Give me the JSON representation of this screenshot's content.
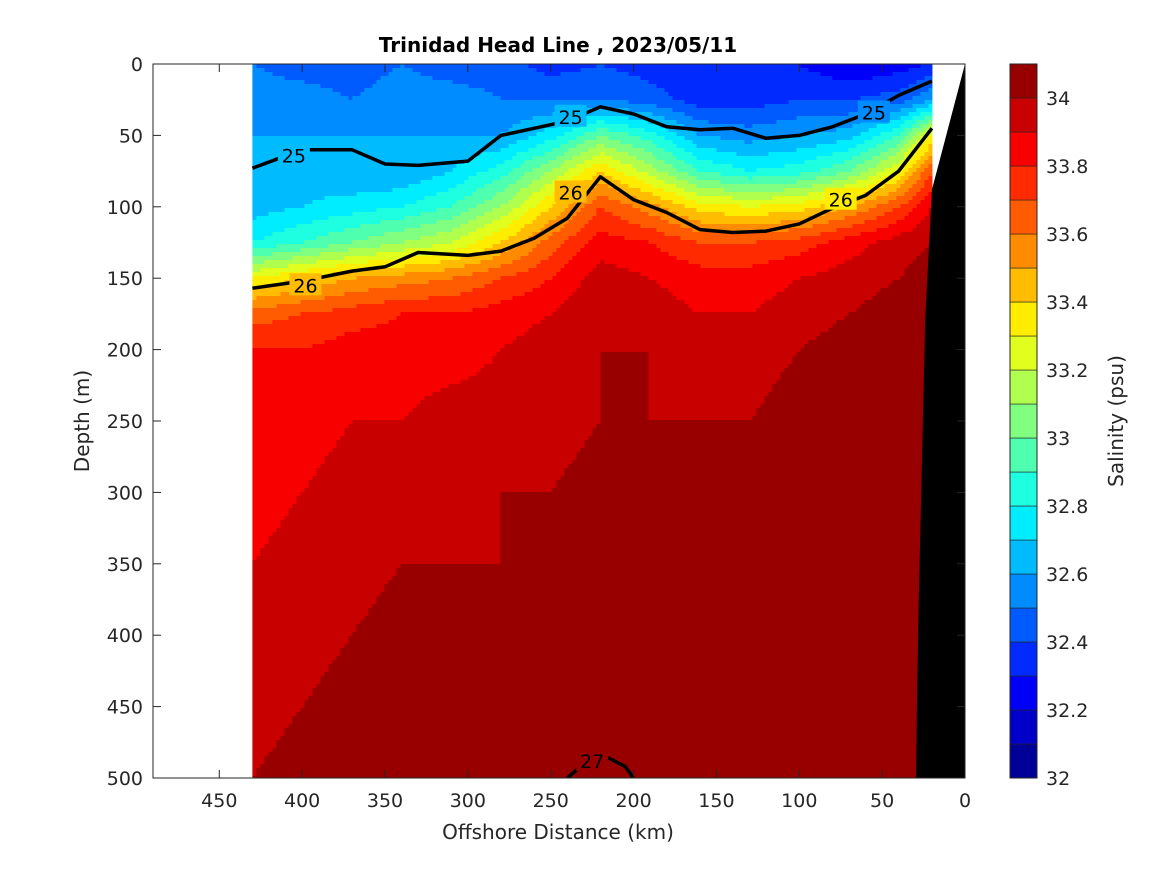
{
  "chart_data": {
    "type": "contourf",
    "title": "Trinidad Head Line , 2023/05/11",
    "xlabel": "Offshore Distance (km)",
    "ylabel": "Depth (m)",
    "xlim": [
      490,
      0
    ],
    "ylim": [
      0,
      500
    ],
    "x_reversed": true,
    "y_reversed": true,
    "x_ticks": [
      450,
      400,
      350,
      300,
      250,
      200,
      150,
      100,
      50,
      0
    ],
    "y_ticks": [
      0,
      50,
      100,
      150,
      200,
      250,
      300,
      350,
      400,
      450,
      500
    ],
    "data_extent_x": [
      430,
      20
    ],
    "colorbar": {
      "label": "Salinity (psu)",
      "range": [
        32,
        34.1
      ],
      "step": 0.1,
      "tick_values": [
        32,
        32.2,
        32.4,
        32.6,
        32.8,
        33,
        33.2,
        33.4,
        33.6,
        33.8,
        34
      ],
      "tick_labels": [
        "32",
        "32.2",
        "32.4",
        "32.6",
        "32.8",
        "33",
        "33.2",
        "33.4",
        "33.6",
        "33.8",
        "34"
      ],
      "colormap": "jet"
    },
    "salinity_field": {
      "description_rows": "depth levels (m)",
      "x": [
        430,
        400,
        370,
        340,
        310,
        280,
        250,
        220,
        190,
        160,
        130,
        100,
        70,
        40,
        20
      ],
      "depth": [
        0,
        25,
        50,
        75,
        100,
        125,
        150,
        175,
        200,
        250,
        300,
        350,
        400,
        450,
        500
      ],
      "values": [
        [
          32.5,
          32.45,
          32.45,
          32.5,
          32.45,
          32.45,
          32.35,
          32.4,
          32.35,
          32.3,
          32.3,
          32.3,
          32.2,
          32.25,
          32.3
        ],
        [
          32.55,
          32.55,
          32.5,
          32.55,
          32.55,
          32.5,
          32.5,
          32.5,
          32.45,
          32.35,
          32.35,
          32.4,
          32.4,
          32.45,
          32.6
        ],
        [
          32.6,
          32.6,
          32.6,
          32.6,
          32.6,
          32.6,
          32.75,
          33.0,
          32.85,
          32.6,
          32.55,
          32.6,
          32.65,
          32.9,
          33.3
        ],
        [
          32.6,
          32.65,
          32.6,
          32.6,
          32.7,
          32.85,
          33.1,
          33.4,
          33.15,
          32.9,
          32.8,
          32.85,
          33.0,
          33.3,
          33.7
        ],
        [
          32.65,
          32.7,
          32.75,
          32.8,
          32.9,
          33.1,
          33.4,
          33.7,
          33.55,
          33.35,
          33.3,
          33.35,
          33.5,
          33.7,
          33.9
        ],
        [
          32.8,
          32.9,
          33.0,
          33.1,
          33.2,
          33.4,
          33.65,
          33.85,
          33.8,
          33.7,
          33.7,
          33.75,
          33.85,
          33.95,
          34.0
        ],
        [
          33.3,
          33.4,
          33.5,
          33.55,
          33.6,
          33.7,
          33.8,
          33.95,
          33.9,
          33.85,
          33.85,
          33.9,
          33.95,
          34.0,
          34.05
        ],
        [
          33.65,
          33.7,
          33.75,
          33.8,
          33.8,
          33.85,
          33.9,
          34.0,
          33.95,
          33.9,
          33.9,
          33.95,
          34.0,
          34.05,
          34.05
        ],
        [
          33.8,
          33.8,
          33.85,
          33.85,
          33.85,
          33.9,
          33.95,
          34.0,
          34.0,
          33.95,
          33.95,
          34.0,
          34.05,
          34.05,
          34.05
        ],
        [
          33.85,
          33.85,
          33.9,
          33.9,
          33.95,
          33.95,
          33.95,
          34.0,
          34.0,
          34.0,
          34.0,
          34.05,
          34.05,
          34.05,
          34.05
        ],
        [
          33.85,
          33.9,
          33.95,
          33.95,
          33.95,
          34.0,
          34.0,
          34.05,
          34.0,
          34.0,
          34.0,
          34.05,
          34.05,
          34.05,
          34.05
        ],
        [
          33.9,
          33.95,
          33.95,
          34.0,
          34.0,
          34.0,
          34.0,
          34.05,
          34.05,
          34.05,
          34.05,
          34.05,
          34.05,
          34.05,
          34.05
        ],
        [
          33.95,
          33.95,
          34.0,
          34.05,
          34.05,
          34.05,
          34.05,
          34.1,
          34.05,
          34.05,
          34.05,
          34.1,
          34.1,
          34.05,
          34.05
        ],
        [
          33.95,
          34.0,
          34.05,
          34.05,
          34.05,
          34.05,
          34.1,
          34.1,
          34.1,
          34.05,
          34.1,
          34.1,
          34.1,
          34.05,
          34.05
        ],
        [
          34.0,
          34.05,
          34.05,
          34.05,
          34.1,
          34.1,
          34.1,
          34.1,
          34.1,
          34.1,
          34.1,
          34.1,
          34.1,
          34.05,
          34.05
        ]
      ]
    },
    "density_contours": [
      {
        "level": 25,
        "x": [
          430,
          400,
          370,
          350,
          330,
          300,
          280,
          260,
          240,
          220,
          200,
          180,
          160,
          140,
          120,
          100,
          80,
          60,
          40,
          20
        ],
        "y": [
          73,
          60,
          60,
          70,
          71,
          68,
          50,
          45,
          40,
          30,
          35,
          44,
          46,
          45,
          52,
          50,
          44,
          35,
          22,
          12
        ],
        "labels": [
          {
            "text": "25",
            "x": 405,
            "y": 64
          },
          {
            "text": "25",
            "x": 238,
            "y": 37
          },
          {
            "text": "25",
            "x": 55,
            "y": 34
          }
        ]
      },
      {
        "level": 26,
        "x": [
          430,
          400,
          370,
          350,
          330,
          300,
          280,
          260,
          240,
          220,
          200,
          180,
          160,
          140,
          120,
          100,
          80,
          60,
          40,
          20
        ],
        "y": [
          157,
          152,
          145,
          142,
          132,
          134,
          131,
          122,
          108,
          79,
          95,
          104,
          116,
          118,
          117,
          112,
          101,
          92,
          75,
          45
        ],
        "labels": [
          {
            "text": "26",
            "x": 398,
            "y": 155
          },
          {
            "text": "26",
            "x": 238,
            "y": 90
          },
          {
            "text": "26",
            "x": 75,
            "y": 95
          }
        ]
      },
      {
        "level": 27,
        "x": [
          240,
          230,
          215,
          205,
          200
        ],
        "y": [
          500,
          490,
          486,
          492,
          500
        ],
        "labels": [
          {
            "text": "27",
            "x": 225,
            "y": 488
          }
        ]
      }
    ],
    "bathymetry": {
      "color": "#000000",
      "x": [
        0,
        20,
        24,
        26,
        28,
        29,
        29.5,
        0
      ],
      "y": [
        0,
        88,
        180,
        280,
        380,
        450,
        500,
        500
      ]
    }
  }
}
